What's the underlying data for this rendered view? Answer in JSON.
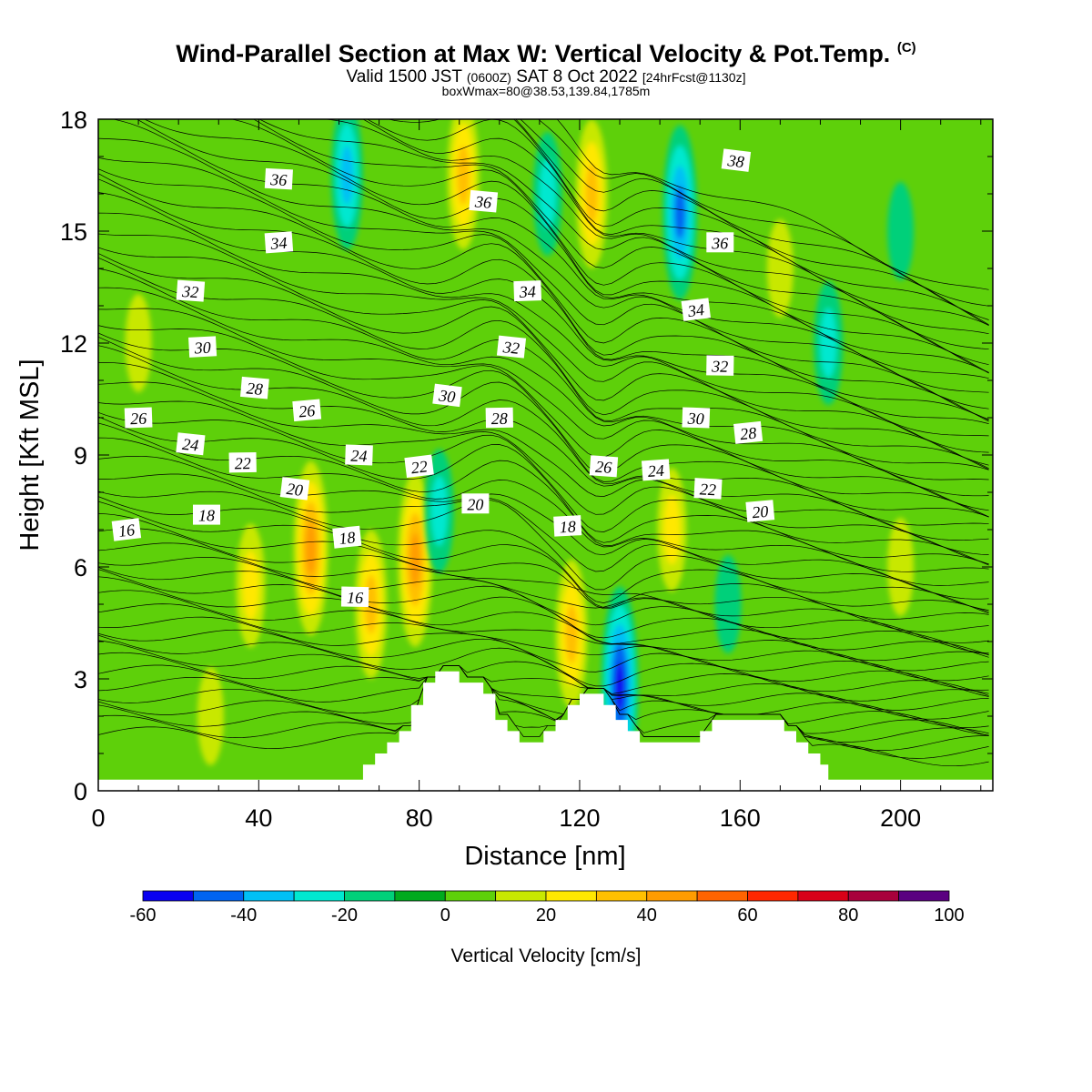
{
  "header": {
    "title_main": "Wind-Parallel Section at Max W: Vertical Velocity & Pot.Temp.",
    "title_copyright": "(C)",
    "valid_prefix": "Valid 1500 JST",
    "valid_utc": "(0600Z)",
    "valid_date": "SAT 8 Oct 2022",
    "forecast_tag": "[24hrFcst@1130z]",
    "box_info": "boxWmax=80@38.53,139.84,1785m"
  },
  "colors": {
    "scale": [
      "#0a00f0",
      "#0064f0",
      "#00c0f5",
      "#00e8d0",
      "#00d07a",
      "#00aa1e",
      "#5ed00a",
      "#c8e800",
      "#ffe800",
      "#ffc000",
      "#ff9c00",
      "#ff6400",
      "#ff2800",
      "#d80018",
      "#a8003c",
      "#5a0080"
    ],
    "terrain": "#ffffff",
    "contour": "#000000"
  },
  "chart_data": {
    "type": "heatmap",
    "xlabel": "Distance [nm]",
    "ylabel": "Height [Kft MSL]",
    "xlim": [
      0,
      223
    ],
    "ylim": [
      0,
      18
    ],
    "x_ticks": [
      0,
      40,
      80,
      120,
      160,
      200
    ],
    "y_ticks": [
      0,
      3,
      6,
      9,
      12,
      15,
      18
    ],
    "colorbar": {
      "label": "Vertical Velocity [cm/s]",
      "min": -60,
      "max": 100,
      "step": 10,
      "tick_labels": [
        "-60",
        "-40",
        "-20",
        "0",
        "20",
        "40",
        "60",
        "80",
        "100"
      ]
    },
    "terrain_profile": {
      "x": [
        0,
        64,
        66,
        69,
        72,
        75,
        78,
        81,
        84,
        87,
        90,
        93,
        96,
        99,
        102,
        105,
        108,
        111,
        114,
        117,
        120,
        123,
        126,
        129,
        132,
        135,
        150,
        153,
        156,
        159,
        162,
        165,
        168,
        171,
        174,
        177,
        180,
        182,
        223
      ],
      "height": [
        0.3,
        0.3,
        0.7,
        1.0,
        1.3,
        1.6,
        2.3,
        2.9,
        3.2,
        3.2,
        2.9,
        2.9,
        2.6,
        1.9,
        1.6,
        1.3,
        1.3,
        1.6,
        1.9,
        2.3,
        2.6,
        2.6,
        2.3,
        1.9,
        1.6,
        1.3,
        1.6,
        1.9,
        1.9,
        1.9,
        1.9,
        1.9,
        1.9,
        1.6,
        1.3,
        1.0,
        0.7,
        0.3,
        0.3
      ]
    },
    "velocity_cells": [
      {
        "x": 53,
        "y": 6.5,
        "value": 45
      },
      {
        "x": 68,
        "y": 5.0,
        "value": 35
      },
      {
        "x": 79,
        "y": 6.2,
        "value": 45
      },
      {
        "x": 91,
        "y": 16.5,
        "value": 35
      },
      {
        "x": 118,
        "y": 4.2,
        "value": 38
      },
      {
        "x": 123,
        "y": 16.0,
        "value": 30
      },
      {
        "x": 38,
        "y": 5.5,
        "value": 22
      },
      {
        "x": 145,
        "y": 15.5,
        "value": -45
      },
      {
        "x": 130,
        "y": 2.8,
        "value": -50
      },
      {
        "x": 62,
        "y": 16.5,
        "value": -30
      },
      {
        "x": 85,
        "y": 7.5,
        "value": -22
      },
      {
        "x": 112,
        "y": 16.0,
        "value": -22
      },
      {
        "x": 182,
        "y": 12.0,
        "value": -20
      },
      {
        "x": 157,
        "y": 5.0,
        "value": -15
      },
      {
        "x": 200,
        "y": 15.0,
        "value": -12
      },
      {
        "x": 170,
        "y": 14.0,
        "value": 18
      },
      {
        "x": 143,
        "y": 7.0,
        "value": 25
      },
      {
        "x": 10,
        "y": 12.0,
        "value": 12
      },
      {
        "x": 200,
        "y": 6.0,
        "value": 12
      },
      {
        "x": 28,
        "y": 2.0,
        "value": 15
      }
    ],
    "theta_contours": {
      "levels": [
        16,
        18,
        20,
        22,
        24,
        26,
        28,
        30,
        32,
        34,
        36,
        38
      ],
      "labels": [
        {
          "text": "16",
          "x": 7,
          "y": 7.0
        },
        {
          "text": "18",
          "x": 27,
          "y": 7.4
        },
        {
          "text": "20",
          "x": 49,
          "y": 8.1
        },
        {
          "text": "22",
          "x": 36,
          "y": 8.8
        },
        {
          "text": "24",
          "x": 23,
          "y": 9.3
        },
        {
          "text": "26",
          "x": 10,
          "y": 10.0
        },
        {
          "text": "28",
          "x": 39,
          "y": 10.8
        },
        {
          "text": "30",
          "x": 26,
          "y": 11.9
        },
        {
          "text": "32",
          "x": 23,
          "y": 13.4
        },
        {
          "text": "34",
          "x": 45,
          "y": 14.7
        },
        {
          "text": "36",
          "x": 45,
          "y": 16.4
        },
        {
          "text": "26",
          "x": 52,
          "y": 10.2
        },
        {
          "text": "24",
          "x": 65,
          "y": 9.0
        },
        {
          "text": "18",
          "x": 62,
          "y": 6.8
        },
        {
          "text": "16",
          "x": 64,
          "y": 5.2
        },
        {
          "text": "22",
          "x": 80,
          "y": 8.7
        },
        {
          "text": "20",
          "x": 94,
          "y": 7.7
        },
        {
          "text": "30",
          "x": 87,
          "y": 10.6
        },
        {
          "text": "28",
          "x": 100,
          "y": 10.0
        },
        {
          "text": "32",
          "x": 103,
          "y": 11.9
        },
        {
          "text": "34",
          "x": 107,
          "y": 13.4
        },
        {
          "text": "36",
          "x": 96,
          "y": 15.8
        },
        {
          "text": "18",
          "x": 117,
          "y": 7.1
        },
        {
          "text": "26",
          "x": 126,
          "y": 8.7
        },
        {
          "text": "24",
          "x": 139,
          "y": 8.6
        },
        {
          "text": "22",
          "x": 152,
          "y": 8.1
        },
        {
          "text": "20",
          "x": 165,
          "y": 7.5
        },
        {
          "text": "30",
          "x": 149,
          "y": 10.0
        },
        {
          "text": "28",
          "x": 162,
          "y": 9.6
        },
        {
          "text": "32",
          "x": 155,
          "y": 11.4
        },
        {
          "text": "34",
          "x": 149,
          "y": 12.9
        },
        {
          "text": "36",
          "x": 155,
          "y": 14.7
        },
        {
          "text": "38",
          "x": 159,
          "y": 16.9
        }
      ]
    }
  }
}
